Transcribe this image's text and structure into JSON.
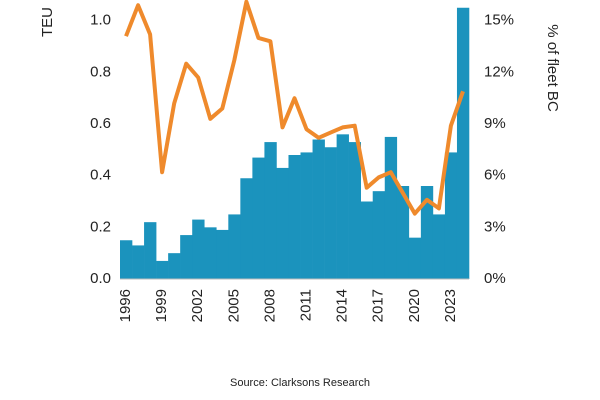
{
  "chart_data": {
    "type": "bar-line",
    "source": "Source: Clarksons Research",
    "y_label": "TEU",
    "y2_label": "% of fleet BC",
    "categories": [
      "1996",
      null,
      null,
      "1999",
      null,
      null,
      "2002",
      null,
      null,
      "2005",
      null,
      null,
      "2008",
      null,
      null,
      "2011",
      null,
      null,
      "2014",
      null,
      null,
      "2017",
      null,
      null,
      "2020",
      null,
      null,
      "2023",
      null
    ],
    "ylim": [
      0,
      1.08
    ],
    "yticks": [
      {
        "value": 0,
        "label": "0.0"
      },
      0.2,
      0.4,
      0.6,
      0.8,
      {
        "value": 1,
        "label": "1.0"
      }
    ],
    "y2lim": [
      0,
      16.2
    ],
    "y2ticks": [
      {
        "value": 0,
        "label": "0%"
      },
      {
        "value": 3,
        "label": "3%"
      },
      {
        "value": 6,
        "label": "6%"
      },
      {
        "value": 9,
        "label": "9%"
      },
      {
        "value": 12,
        "label": "12%"
      },
      {
        "value": 15,
        "label": "15%"
      }
    ],
    "series": [
      {
        "type": "bar",
        "color": "#1b93bd",
        "values": [
          0.15,
          0.13,
          0.22,
          0.07,
          0.1,
          0.17,
          0.23,
          0.2,
          0.19,
          0.25,
          0.39,
          0.47,
          0.53,
          0.43,
          0.48,
          0.49,
          0.54,
          0.51,
          0.56,
          0.53,
          0.3,
          0.34,
          0.55,
          0.36,
          0.16,
          0.36,
          0.25,
          0.49,
          1.05
        ]
      },
      {
        "type": "line",
        "axis": "y2",
        "color": "#ef8a2c",
        "values": [
          14.1,
          15.9,
          14.2,
          6.2,
          10.2,
          12.5,
          11.7,
          9.3,
          9.9,
          12.7,
          16.1,
          14.0,
          13.8,
          8.8,
          10.5,
          8.7,
          8.2,
          8.5,
          8.8,
          8.9,
          5.3,
          5.9,
          6.2,
          5.0,
          3.8,
          4.6,
          4.1,
          8.9,
          10.9
        ]
      }
    ]
  }
}
